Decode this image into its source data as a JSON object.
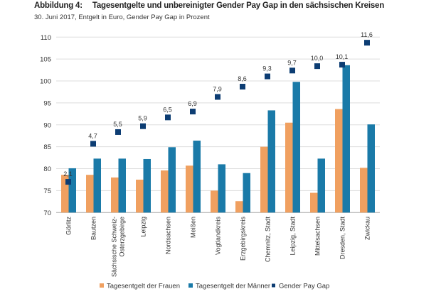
{
  "chart_data": {
    "type": "bar",
    "title_number": "Abbildung 4:",
    "title": "Tagesentgelte und unbereinigter Gender Pay Gap in den sächsischen Kreisen",
    "subtitle": "30. Juni 2017, Entgelt in Euro, Gender Pay Gap in Prozent",
    "xlabel": "",
    "ylabel": "",
    "ylim": [
      70,
      110
    ],
    "yticks": [
      "70",
      "75",
      "80",
      "85",
      "90",
      "95",
      "100",
      "105",
      "110"
    ],
    "grid": true,
    "legend_position": "bottom",
    "categories": [
      [
        "Görlitz"
      ],
      [
        "Bautzen"
      ],
      [
        "Sächsische Schweiz-",
        "Osterzgebirge"
      ],
      [
        "Leipzig"
      ],
      [
        "Nordsachsen"
      ],
      [
        "Meißen"
      ],
      [
        "Vogtlandkreis"
      ],
      [
        "Erzgebirgskreis"
      ],
      [
        "Chemnitz, Stadt"
      ],
      [
        "Leipzig, Stadt"
      ],
      [
        "Mittelsachsen"
      ],
      [
        "Dresden, Stadt"
      ],
      [
        "Zwickau"
      ]
    ],
    "series": [
      {
        "name": "Tagesentgelt der Frauen",
        "type": "bar",
        "color": "#f0a060",
        "values": [
          78.6,
          78.6,
          78.0,
          77.5,
          79.6,
          80.7,
          75.0,
          72.6,
          85.0,
          90.5,
          74.5,
          93.6,
          80.2
        ]
      },
      {
        "name": "Tagesentgelt der Männer",
        "type": "bar",
        "color": "#1a7aa8",
        "values": [
          80.1,
          82.3,
          82.3,
          82.2,
          84.9,
          86.4,
          81.0,
          79.0,
          93.3,
          99.8,
          82.3,
          103.6,
          90.1
        ]
      },
      {
        "name": "Gender Pay Gap",
        "type": "marker",
        "axis": "secondary (hidden)",
        "color": "#0d3d73",
        "values": [
          2.1,
          4.7,
          5.5,
          5.9,
          6.5,
          6.9,
          7.9,
          8.6,
          9.3,
          9.7,
          10.0,
          10.1,
          11.6
        ],
        "labels": [
          "2,1",
          "4,7",
          "5,5",
          "5,9",
          "6,5",
          "6,9",
          "7,9",
          "8,6",
          "9,3",
          "9,7",
          "10,0",
          "10,1",
          "11,6"
        ]
      }
    ]
  }
}
